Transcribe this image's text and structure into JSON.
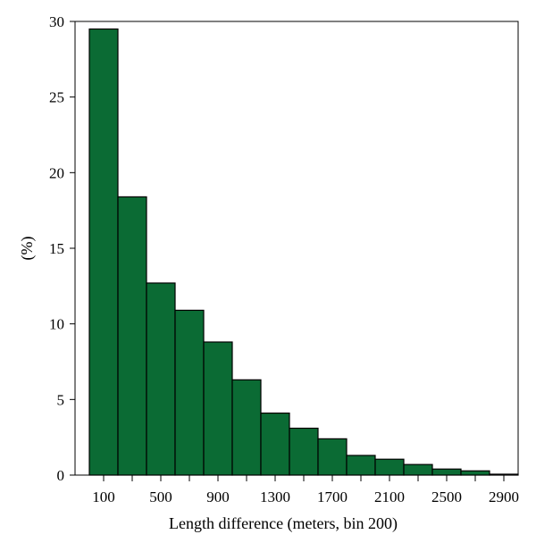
{
  "chart_data": {
    "type": "bar",
    "title": "",
    "xlabel": "Length difference (meters, bin 200)",
    "ylabel": "(%)",
    "bin_width": 200,
    "bins": [
      0,
      200,
      400,
      600,
      800,
      1000,
      1200,
      1400,
      1600,
      1800,
      2000,
      2200,
      2400,
      2600,
      2800
    ],
    "values": [
      29.5,
      18.4,
      12.7,
      10.9,
      8.8,
      6.3,
      4.1,
      3.1,
      2.4,
      1.3,
      1.05,
      0.7,
      0.4,
      0.28,
      0.06
    ],
    "xlim": [
      -100,
      3000
    ],
    "ylim": [
      0,
      30
    ],
    "x_ticks": [
      100,
      300,
      500,
      700,
      900,
      1100,
      1300,
      1500,
      1700,
      1900,
      2100,
      2300,
      2500,
      2700,
      2900
    ],
    "x_tick_labels": [
      "100",
      "",
      "500",
      "",
      "900",
      "",
      "1300",
      "",
      "1700",
      "",
      "2100",
      "",
      "2500",
      "",
      "2900"
    ],
    "y_ticks": [
      0,
      5,
      10,
      15,
      20,
      25,
      30
    ],
    "y_tick_labels": [
      "0",
      "5",
      "10",
      "15",
      "20",
      "25",
      "30"
    ],
    "bar_color": "#0b6b34",
    "edge_color": "#000000",
    "grid": false,
    "legend": "none"
  }
}
